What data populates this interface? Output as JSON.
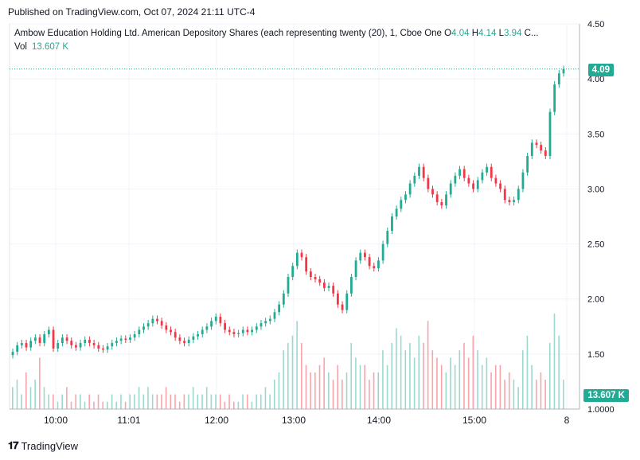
{
  "header": {
    "published": "Published on TradingView.com, Oct 07, 2024 21:11 UTC-4"
  },
  "legend": {
    "symbol": "Ambow Education Holding Ltd. American Depository Shares (each representing twenty (20), 1, Cboe One",
    "o_label": "O",
    "o_value": "4.04",
    "h_label": "H",
    "h_value": "4.14",
    "l_label": "L",
    "l_value": "3.94",
    "c_label": "C...",
    "vol_label": "Vol",
    "vol_value": "13.607 K"
  },
  "footer": {
    "brand": "TradingView"
  },
  "colors": {
    "up": "#22ab94",
    "down": "#f23645",
    "grid": "#f0f3fa",
    "axis_text": "#131722"
  },
  "chart_data": {
    "type": "candlestick",
    "y_axis_ticks": [
      "4.50",
      "4.00",
      "3.50",
      "3.00",
      "2.50",
      "2.00",
      "1.50",
      "1.0000"
    ],
    "x_axis_ticks": [
      "10:00",
      "11:01",
      "12:00",
      "13:00",
      "14:00",
      "15:00",
      "8"
    ],
    "last_price_label": "4.09",
    "last_volume_label": "13.607 K",
    "ylim": [
      1.0,
      4.5
    ],
    "candles_close": [
      1.52,
      1.58,
      1.6,
      1.56,
      1.62,
      1.65,
      1.6,
      1.68,
      1.72,
      1.55,
      1.6,
      1.65,
      1.62,
      1.58,
      1.56,
      1.6,
      1.63,
      1.6,
      1.58,
      1.55,
      1.54,
      1.57,
      1.6,
      1.62,
      1.64,
      1.63,
      1.65,
      1.68,
      1.72,
      1.75,
      1.78,
      1.82,
      1.8,
      1.76,
      1.72,
      1.7,
      1.65,
      1.62,
      1.6,
      1.63,
      1.66,
      1.68,
      1.72,
      1.75,
      1.8,
      1.84,
      1.78,
      1.72,
      1.7,
      1.68,
      1.69,
      1.72,
      1.7,
      1.72,
      1.75,
      1.78,
      1.8,
      1.82,
      1.88,
      1.95,
      2.05,
      2.2,
      2.3,
      2.42,
      2.38,
      2.25,
      2.2,
      2.18,
      2.15,
      2.1,
      2.12,
      2.05,
      1.95,
      1.9,
      2.05,
      2.2,
      2.35,
      2.42,
      2.38,
      2.3,
      2.28,
      2.35,
      2.5,
      2.62,
      2.75,
      2.82,
      2.9,
      2.95,
      3.05,
      3.12,
      3.2,
      3.1,
      3.0,
      2.95,
      2.88,
      2.85,
      2.95,
      3.05,
      3.12,
      3.18,
      3.1,
      3.05,
      3.0,
      3.08,
      3.15,
      3.2,
      3.1,
      3.05,
      3.0,
      2.9,
      2.88,
      2.9,
      3.0,
      3.15,
      3.3,
      3.42,
      3.4,
      3.35,
      3.3,
      3.7,
      3.95,
      4.05,
      4.09
    ],
    "volumes": [
      3,
      4,
      2,
      5,
      3,
      4,
      7,
      3,
      2,
      2,
      1,
      2,
      3,
      1,
      2,
      2,
      1,
      2,
      1,
      2,
      1,
      1,
      2,
      1,
      2,
      1,
      2,
      2,
      3,
      2,
      3,
      2,
      2,
      2,
      3,
      2,
      2,
      1,
      2,
      2,
      3,
      2,
      2,
      3,
      2,
      2,
      2,
      1,
      2,
      1,
      1,
      2,
      2,
      1,
      2,
      2,
      3,
      2,
      4,
      5,
      8,
      9,
      10,
      12,
      9,
      6,
      5,
      5,
      6,
      7,
      5,
      4,
      6,
      4,
      5,
      9,
      7,
      6,
      6,
      4,
      5,
      5,
      8,
      6,
      9,
      11,
      10,
      8,
      9,
      7,
      10,
      9,
      12,
      8,
      7,
      6,
      5,
      7,
      6,
      8,
      9,
      7,
      10,
      8,
      6,
      7,
      5,
      6,
      6,
      4,
      5,
      4,
      3,
      8,
      10,
      6,
      4,
      5,
      4,
      9,
      13,
      10,
      4
    ]
  }
}
